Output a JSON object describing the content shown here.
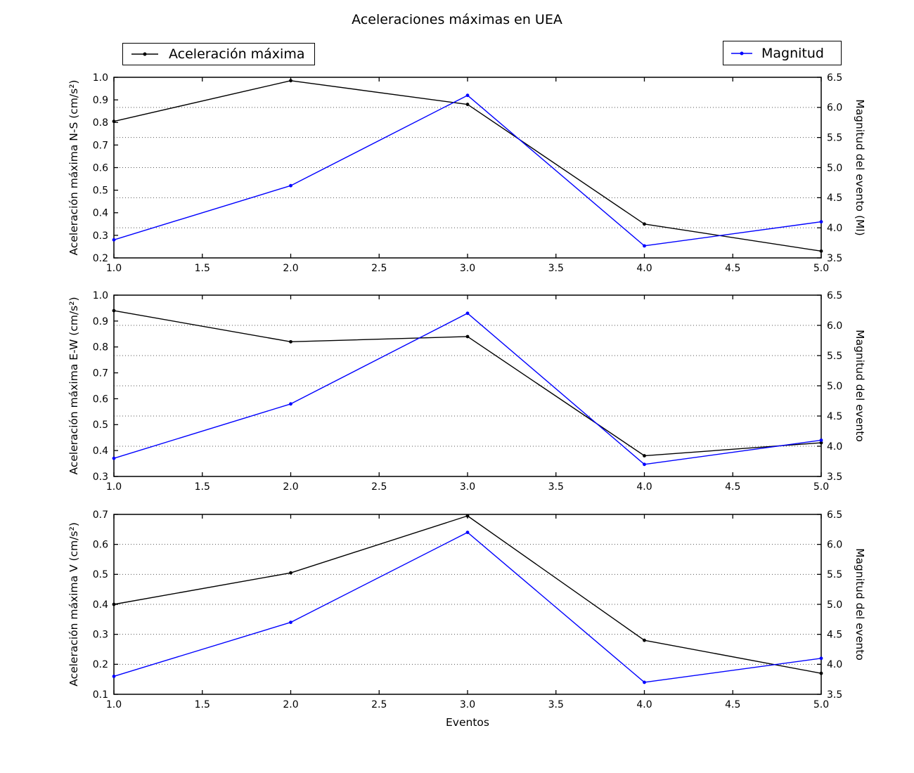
{
  "figure": {
    "title": "Aceleraciones máximas en UEA",
    "legends": [
      {
        "label": "Aceleración máxima",
        "color": "#000000"
      },
      {
        "label": "Magnitud",
        "color": "#0000ff"
      }
    ]
  },
  "chart_data": [
    {
      "type": "line",
      "x": [
        1,
        2,
        3,
        4,
        5
      ],
      "xlabel": "",
      "xlim": [
        1.0,
        5.0
      ],
      "xtick_labels": [
        "1.0",
        "1.5",
        "2.0",
        "2.5",
        "3.0",
        "3.5",
        "4.0",
        "4.5",
        "5.0"
      ],
      "ylabel": "Aceleración máxima N-S (cm/s²)",
      "ylim": [
        0.2,
        1.0
      ],
      "ytick_labels": [
        "1.0",
        "0.9",
        "0.8",
        "0.7",
        "0.6",
        "0.5",
        "0.4",
        "0.3",
        "0.2"
      ],
      "y2label": "Magnitud del evento (Ml)",
      "y2lim": [
        3.5,
        6.5
      ],
      "y2tick_labels": [
        "6.5",
        "6.0",
        "5.5",
        "5.0",
        "4.5",
        "4.0",
        "3.5"
      ],
      "grid": "dotted-horizontal",
      "grid_values_right": [
        6.0,
        5.5,
        5.0,
        4.5,
        4.0
      ],
      "series": [
        {
          "name": "Aceleración máxima",
          "axis": "left",
          "color": "#000000",
          "marker": "dot",
          "values": [
            0.805,
            0.985,
            0.88,
            0.35,
            0.23
          ]
        },
        {
          "name": "Magnitud",
          "axis": "right",
          "color": "#0000ff",
          "marker": "dot",
          "values": [
            3.8,
            4.7,
            6.2,
            3.7,
            4.1
          ]
        }
      ]
    },
    {
      "type": "line",
      "x": [
        1,
        2,
        3,
        4,
        5
      ],
      "xlabel": "",
      "xlim": [
        1.0,
        5.0
      ],
      "xtick_labels": [
        "1.0",
        "1.5",
        "2.0",
        "2.5",
        "3.0",
        "3.5",
        "4.0",
        "4.5",
        "5.0"
      ],
      "ylabel": "Aceleración máxima E-W (cm/s²)",
      "ylim": [
        0.3,
        1.0
      ],
      "ytick_labels": [
        "1.0",
        "0.9",
        "0.8",
        "0.7",
        "0.6",
        "0.5",
        "0.4",
        "0.3"
      ],
      "y2label": "Magnitud del evento",
      "y2lim": [
        3.5,
        6.5
      ],
      "y2tick_labels": [
        "6.5",
        "6.0",
        "5.5",
        "5.0",
        "4.5",
        "4.0",
        "3.5"
      ],
      "grid": "dotted-horizontal",
      "grid_values_right": [
        6.0,
        5.5,
        5.0,
        4.5,
        4.0
      ],
      "series": [
        {
          "name": "Aceleración máxima",
          "axis": "left",
          "color": "#000000",
          "marker": "dot",
          "values": [
            0.94,
            0.82,
            0.84,
            0.38,
            0.43
          ]
        },
        {
          "name": "Magnitud",
          "axis": "right",
          "color": "#0000ff",
          "marker": "dot",
          "values": [
            3.8,
            4.7,
            6.2,
            3.7,
            4.1
          ]
        }
      ]
    },
    {
      "type": "line",
      "x": [
        1,
        2,
        3,
        4,
        5
      ],
      "xlabel": "Eventos",
      "xlim": [
        1.0,
        5.0
      ],
      "xtick_labels": [
        "1.0",
        "1.5",
        "2.0",
        "2.5",
        "3.0",
        "3.5",
        "4.0",
        "4.5",
        "5.0"
      ],
      "ylabel": "Aceleración máxima V (cm/s²)",
      "ylim": [
        0.1,
        0.7
      ],
      "ytick_labels": [
        "0.7",
        "0.6",
        "0.5",
        "0.4",
        "0.3",
        "0.2",
        "0.1"
      ],
      "y2label": "Magnitud del evento",
      "y2lim": [
        3.5,
        6.5
      ],
      "y2tick_labels": [
        "6.5",
        "6.0",
        "5.5",
        "5.0",
        "4.5",
        "4.0",
        "3.5"
      ],
      "grid": "dotted-horizontal",
      "grid_values_right": [
        6.0,
        5.5,
        5.0,
        4.5,
        4.0
      ],
      "series": [
        {
          "name": "Aceleración máxima",
          "axis": "left",
          "color": "#000000",
          "marker": "dot",
          "values": [
            0.4,
            0.505,
            0.695,
            0.28,
            0.17
          ]
        },
        {
          "name": "Magnitud",
          "axis": "right",
          "color": "#0000ff",
          "marker": "dot",
          "values": [
            3.8,
            4.7,
            6.2,
            3.7,
            4.1
          ]
        }
      ]
    }
  ]
}
